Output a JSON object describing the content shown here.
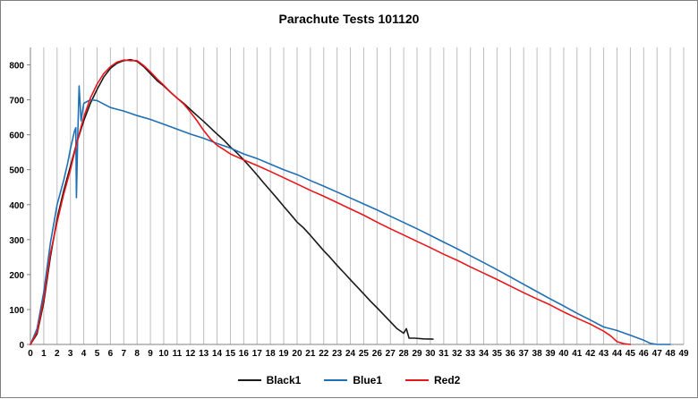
{
  "chart_data": {
    "type": "line",
    "title": "Parachute Tests 101120",
    "xlabel": "",
    "ylabel": "",
    "xlim": [
      0,
      49
    ],
    "ylim": [
      0,
      850
    ],
    "x_ticks": [
      0,
      1,
      2,
      3,
      4,
      5,
      6,
      7,
      8,
      9,
      10,
      11,
      12,
      13,
      14,
      15,
      16,
      17,
      18,
      19,
      20,
      21,
      22,
      23,
      24,
      25,
      26,
      27,
      28,
      29,
      30,
      31,
      32,
      33,
      34,
      35,
      36,
      37,
      38,
      39,
      40,
      41,
      42,
      43,
      44,
      45,
      46,
      47,
      48,
      49
    ],
    "y_ticks": [
      0,
      100,
      200,
      300,
      400,
      500,
      600,
      700,
      800
    ],
    "grid": {
      "vertical": true,
      "horizontal": false
    },
    "legend_position": "bottom",
    "series": [
      {
        "name": "Black1",
        "color": "#1a1a1a",
        "points": [
          [
            0,
            0
          ],
          [
            0.5,
            30
          ],
          [
            1,
            120
          ],
          [
            1.5,
            250
          ],
          [
            2,
            360
          ],
          [
            2.5,
            440
          ],
          [
            3,
            510
          ],
          [
            3.5,
            580
          ],
          [
            4,
            640
          ],
          [
            4.5,
            690
          ],
          [
            5,
            730
          ],
          [
            5.5,
            765
          ],
          [
            6,
            790
          ],
          [
            6.5,
            805
          ],
          [
            7,
            812
          ],
          [
            7.5,
            815
          ],
          [
            8,
            810
          ],
          [
            8.5,
            795
          ],
          [
            9,
            775
          ],
          [
            9.5,
            755
          ],
          [
            10,
            740
          ],
          [
            10.5,
            722
          ],
          [
            11,
            705
          ],
          [
            11.5,
            690
          ],
          [
            12,
            672
          ],
          [
            12.5,
            655
          ],
          [
            13,
            638
          ],
          [
            13.5,
            620
          ],
          [
            14,
            602
          ],
          [
            14.5,
            585
          ],
          [
            15,
            565
          ],
          [
            15.5,
            548
          ],
          [
            16,
            528
          ],
          [
            16.5,
            507
          ],
          [
            17,
            485
          ],
          [
            17.5,
            462
          ],
          [
            18,
            440
          ],
          [
            18.5,
            418
          ],
          [
            19,
            395
          ],
          [
            19.5,
            373
          ],
          [
            20,
            350
          ],
          [
            20.5,
            333
          ],
          [
            21,
            312
          ],
          [
            21.5,
            290
          ],
          [
            22,
            268
          ],
          [
            22.5,
            248
          ],
          [
            23,
            226
          ],
          [
            23.5,
            206
          ],
          [
            24,
            185
          ],
          [
            24.5,
            165
          ],
          [
            25,
            145
          ],
          [
            25.5,
            124
          ],
          [
            26,
            105
          ],
          [
            26.5,
            85
          ],
          [
            27,
            65
          ],
          [
            27.5,
            45
          ],
          [
            28,
            32
          ],
          [
            28.2,
            45
          ],
          [
            28.4,
            18
          ],
          [
            28.8,
            18
          ],
          [
            29.5,
            16
          ],
          [
            30.2,
            15
          ]
        ]
      },
      {
        "name": "Blue1",
        "color": "#1f6fb5",
        "points": [
          [
            0,
            0
          ],
          [
            0.5,
            45
          ],
          [
            1,
            150
          ],
          [
            1.5,
            290
          ],
          [
            2,
            400
          ],
          [
            2.5,
            470
          ],
          [
            2.8,
            520
          ],
          [
            3,
            560
          ],
          [
            3.3,
            610
          ],
          [
            3.4,
            620
          ],
          [
            3.45,
            420
          ],
          [
            3.55,
            600
          ],
          [
            3.65,
            740
          ],
          [
            3.8,
            640
          ],
          [
            4,
            690
          ],
          [
            4.5,
            700
          ],
          [
            5,
            698
          ],
          [
            5.5,
            688
          ],
          [
            6,
            678
          ],
          [
            7,
            668
          ],
          [
            8,
            655
          ],
          [
            9,
            644
          ],
          [
            10,
            630
          ],
          [
            11,
            616
          ],
          [
            12,
            602
          ],
          [
            13,
            590
          ],
          [
            14,
            575
          ],
          [
            15,
            562
          ],
          [
            16,
            545
          ],
          [
            17,
            532
          ],
          [
            18,
            516
          ],
          [
            19,
            500
          ],
          [
            20,
            486
          ],
          [
            21,
            469
          ],
          [
            22,
            453
          ],
          [
            23,
            436
          ],
          [
            24,
            419
          ],
          [
            25,
            402
          ],
          [
            26,
            385
          ],
          [
            27,
            367
          ],
          [
            28,
            349
          ],
          [
            29,
            331
          ],
          [
            30,
            312
          ],
          [
            31,
            293
          ],
          [
            32,
            274
          ],
          [
            33,
            254
          ],
          [
            34,
            234
          ],
          [
            35,
            214
          ],
          [
            36,
            193
          ],
          [
            37,
            172
          ],
          [
            38,
            151
          ],
          [
            39,
            130
          ],
          [
            40,
            110
          ],
          [
            41,
            89
          ],
          [
            42,
            70
          ],
          [
            43,
            50
          ],
          [
            44,
            40
          ],
          [
            45,
            26
          ],
          [
            46,
            12
          ],
          [
            46.5,
            3
          ],
          [
            47,
            0
          ],
          [
            48,
            0
          ]
        ]
      },
      {
        "name": "Red2",
        "color": "#e8161b",
        "points": [
          [
            0,
            0
          ],
          [
            0.5,
            35
          ],
          [
            1,
            130
          ],
          [
            1.5,
            260
          ],
          [
            2,
            350
          ],
          [
            2.5,
            430
          ],
          [
            3,
            500
          ],
          [
            3.5,
            580
          ],
          [
            4,
            650
          ],
          [
            4.5,
            705
          ],
          [
            5,
            745
          ],
          [
            5.5,
            775
          ],
          [
            6,
            795
          ],
          [
            6.5,
            808
          ],
          [
            7,
            814
          ],
          [
            7.5,
            812
          ],
          [
            8,
            812
          ],
          [
            8.5,
            798
          ],
          [
            9,
            780
          ],
          [
            9.5,
            760
          ],
          [
            10,
            742
          ],
          [
            10.5,
            722
          ],
          [
            11,
            705
          ],
          [
            11.5,
            688
          ],
          [
            12,
            665
          ],
          [
            12.5,
            640
          ],
          [
            13,
            612
          ],
          [
            13.5,
            588
          ],
          [
            14,
            570
          ],
          [
            14.5,
            558
          ],
          [
            15,
            545
          ],
          [
            16,
            528
          ],
          [
            17,
            512
          ],
          [
            18,
            495
          ],
          [
            19,
            477
          ],
          [
            20,
            459
          ],
          [
            21,
            441
          ],
          [
            22,
            424
          ],
          [
            23,
            406
          ],
          [
            24,
            388
          ],
          [
            25,
            370
          ],
          [
            26,
            350
          ],
          [
            27,
            331
          ],
          [
            28,
            313
          ],
          [
            29,
            295
          ],
          [
            30,
            277
          ],
          [
            31,
            258
          ],
          [
            32,
            241
          ],
          [
            33,
            222
          ],
          [
            34,
            204
          ],
          [
            35,
            186
          ],
          [
            36,
            167
          ],
          [
            37,
            148
          ],
          [
            38,
            130
          ],
          [
            39,
            113
          ],
          [
            40,
            93
          ],
          [
            41,
            75
          ],
          [
            42,
            58
          ],
          [
            43,
            38
          ],
          [
            43.5,
            25
          ],
          [
            44,
            8
          ],
          [
            44.5,
            2
          ],
          [
            45,
            0
          ]
        ]
      }
    ]
  }
}
